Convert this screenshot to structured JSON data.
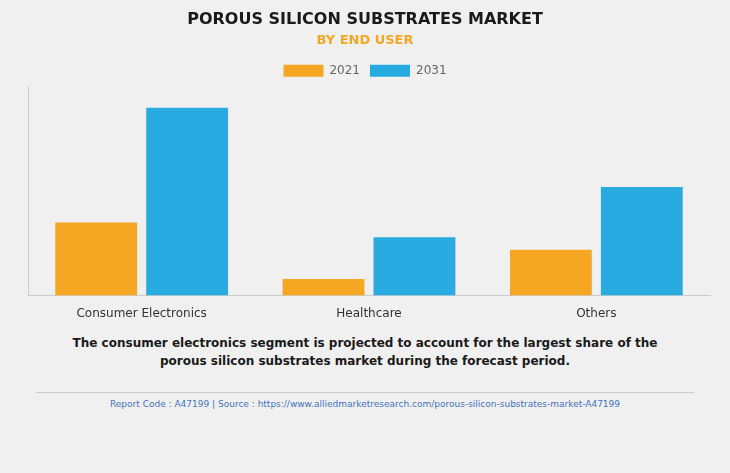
{
  "chart_data": {
    "type": "bar",
    "title": "POROUS SILICON SUBSTRATES MARKET",
    "subtitle": "BY END USER",
    "categories": [
      "Consumer Electronics",
      "Healthcare",
      "Others"
    ],
    "series": [
      {
        "name": "2021",
        "color": "#F5A623",
        "values": [
          35,
          8,
          22
        ]
      },
      {
        "name": "2031",
        "color": "#29ABE2",
        "values": [
          90,
          28,
          52
        ]
      }
    ],
    "ylim": [
      0,
      100
    ],
    "grid": false,
    "tick_labels": "x",
    "legend": "top",
    "annotation": "The consumer electronics segment is projected to account for the largest share of the\nporous silicon substrates market during the forecast period.",
    "footer": "Report Code : A47199   |   Source : https://www.alliedmarketresearch.com/porous-silicon-substrates-market-A47199"
  }
}
